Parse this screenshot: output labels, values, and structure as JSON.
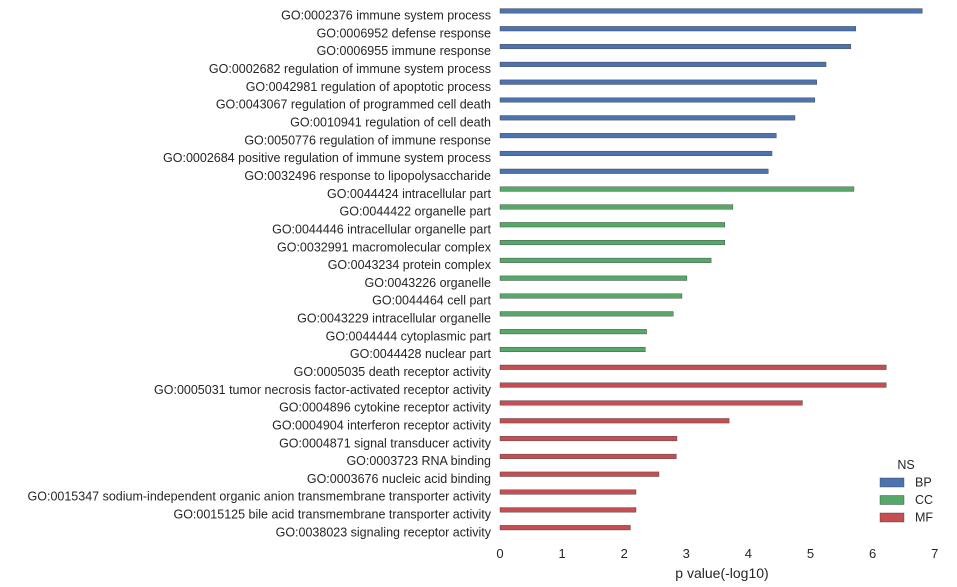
{
  "chart_data": {
    "type": "bar",
    "orientation": "horizontal",
    "xlabel": "p value(-log10)",
    "xlim": [
      0,
      7
    ],
    "xticks": [
      "0",
      "1",
      "2",
      "3",
      "4",
      "5",
      "6",
      "7"
    ],
    "grid": false,
    "legend": {
      "title": "NS",
      "placement": "bottom-right",
      "entries": [
        {
          "name": "BP",
          "color": "#4C72B0"
        },
        {
          "name": "CC",
          "color": "#55A868"
        },
        {
          "name": "MF",
          "color": "#C44E52"
        }
      ]
    },
    "categories": [
      "GO:0002376 immune system process",
      "GO:0006952 defense response",
      "GO:0006955 immune response",
      "GO:0002682 regulation of immune system process",
      "GO:0042981 regulation of apoptotic process",
      "GO:0043067 regulation of programmed cell death",
      "GO:0010941 regulation of cell death",
      "GO:0050776 regulation of immune response",
      "GO:0002684 positive regulation of immune system process",
      "GO:0032496 response to lipopolysaccharide",
      "GO:0044424 intracellular part",
      "GO:0044422 organelle part",
      "GO:0044446 intracellular organelle part",
      "GO:0032991 macromolecular complex",
      "GO:0043234 protein complex",
      "GO:0043226 organelle",
      "GO:0044464 cell part",
      "GO:0043229 intracellular organelle",
      "GO:0044444 cytoplasmic part",
      "GO:0044428 nuclear part",
      "GO:0005035 death receptor activity",
      "GO:0005031 tumor necrosis factor-activated receptor activity",
      "GO:0004896 cytokine receptor activity",
      "GO:0004904 interferon receptor activity",
      "GO:0004871 signal transducer activity",
      "GO:0003723 RNA binding",
      "GO:0003676 nucleic acid binding",
      "GO:0015347 sodium-independent organic anion transmembrane transporter activity",
      "GO:0015125 bile acid transmembrane transporter activity",
      "GO:0038023 signaling receptor activity"
    ],
    "groups": [
      "BP",
      "BP",
      "BP",
      "BP",
      "BP",
      "BP",
      "BP",
      "BP",
      "BP",
      "BP",
      "CC",
      "CC",
      "CC",
      "CC",
      "CC",
      "CC",
      "CC",
      "CC",
      "CC",
      "CC",
      "MF",
      "MF",
      "MF",
      "MF",
      "MF",
      "MF",
      "MF",
      "MF",
      "MF",
      "MF"
    ],
    "values": [
      6.8,
      5.73,
      5.65,
      5.25,
      5.1,
      5.07,
      4.75,
      4.45,
      4.38,
      4.32,
      5.7,
      3.75,
      3.62,
      3.62,
      3.4,
      3.01,
      2.93,
      2.79,
      2.36,
      2.34,
      6.22,
      6.22,
      4.87,
      3.69,
      2.85,
      2.84,
      2.56,
      2.19,
      2.19,
      2.1
    ]
  }
}
